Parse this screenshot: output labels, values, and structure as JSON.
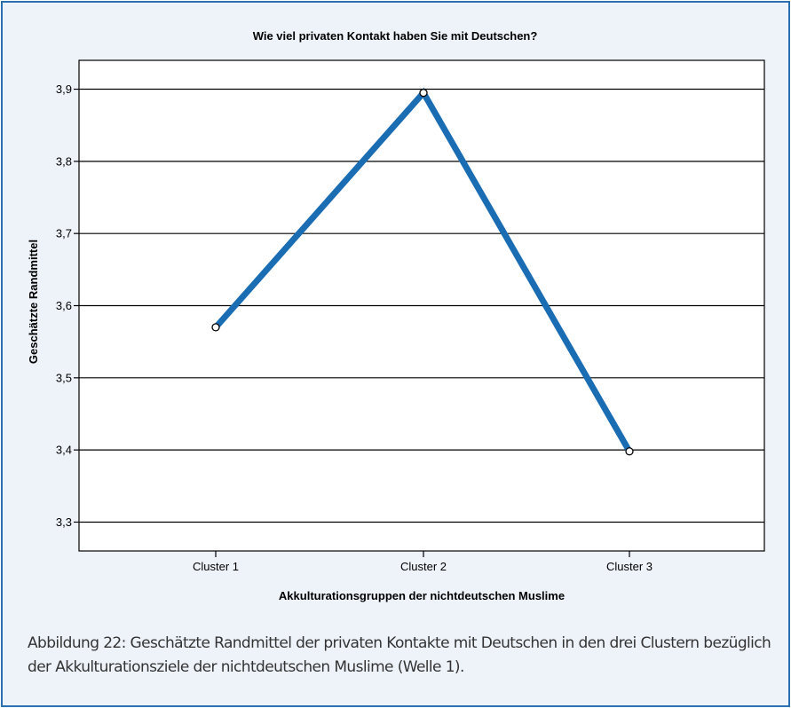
{
  "chart_data": {
    "type": "line",
    "title": "Wie viel privaten Kontakt haben Sie mit Deutschen?",
    "xlabel": "Akkulturationsgruppen der nichtdeutschen Muslime",
    "ylabel": "Geschätzte Randmittel",
    "categories": [
      "Cluster 1",
      "Cluster 2",
      "Cluster 3"
    ],
    "series": [
      {
        "values": [
          3.57,
          3.895,
          3.398
        ]
      }
    ],
    "ylim": [
      3.26,
      3.94
    ],
    "yticks": [
      "3,3",
      "3,4",
      "3,5",
      "3,6",
      "3,7",
      "3,8",
      "3,9"
    ],
    "ytick_values": [
      3.3,
      3.4,
      3.5,
      3.6,
      3.7,
      3.8,
      3.9
    ],
    "grid": "horizontal",
    "line_color": "#1b6db3"
  },
  "caption": "Abbildung 22: Geschätzte Randmittel der privaten Kontakte mit Deutschen in den drei Clustern bezüglich der Akkulturationsziele der nichtdeutschen Muslime (Welle 1)."
}
